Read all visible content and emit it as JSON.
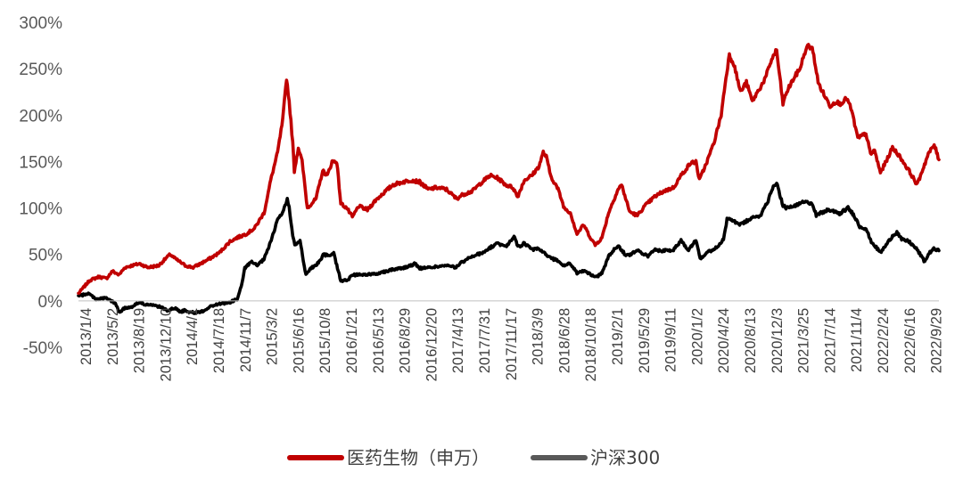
{
  "chart_data": {
    "type": "line",
    "y_tick_labels": [
      "300%",
      "250%",
      "200%",
      "150%",
      "100%",
      "50%",
      "0%",
      "-50%"
    ],
    "y_tick_values": [
      300,
      250,
      200,
      150,
      100,
      50,
      0,
      -50
    ],
    "ylim": [
      -50,
      300
    ],
    "y_unit": "%",
    "x_tick_labels": [
      "2013/1/4",
      "2013/5/2",
      "2013/8/19",
      "2013/12/10",
      "2014/4/1",
      "2014/7/18",
      "2014/11/7",
      "2015/3/2",
      "2015/6/16",
      "2015/10/8",
      "2016/1/21",
      "2016/5/13",
      "2016/8/29",
      "2016/12/20",
      "2017/4/13",
      "2017/7/31",
      "2017/11/17",
      "2018/3/9",
      "2018/6/28",
      "2018/10/18",
      "2019/2/1",
      "2019/5/29",
      "2019/9/11",
      "2020/1/2",
      "2020/4/24",
      "2020/8/13",
      "2020/12/3",
      "2021/3/25",
      "2021/7/14",
      "2021/11/4",
      "2022/2/24",
      "2022/6/16",
      "2022/9/29"
    ],
    "grid": false,
    "legend_position": "bottom",
    "series": [
      {
        "name": "医药生物（申万）",
        "color": "#c00000",
        "points": [
          [
            "2013/1/4",
            8
          ],
          [
            "2013/2/20",
            22
          ],
          [
            "2013/4/1",
            26
          ],
          [
            "2013/5/2",
            24
          ],
          [
            "2013/5/28",
            32
          ],
          [
            "2013/6/25",
            28
          ],
          [
            "2013/7/20",
            36
          ],
          [
            "2013/8/19",
            38
          ],
          [
            "2013/9/20",
            40
          ],
          [
            "2013/10/25",
            36
          ],
          [
            "2013/12/10",
            38
          ],
          [
            "2014/1/10",
            46
          ],
          [
            "2014/1/28",
            50
          ],
          [
            "2014/2/20",
            45
          ],
          [
            "2014/3/10",
            42
          ],
          [
            "2014/4/1",
            38
          ],
          [
            "2014/5/5",
            36
          ],
          [
            "2014/6/5",
            40
          ],
          [
            "2014/7/18",
            46
          ],
          [
            "2014/8/25",
            52
          ],
          [
            "2014/10/8",
            64
          ],
          [
            "2014/11/7",
            68
          ],
          [
            "2014/12/15",
            72
          ],
          [
            "2015/1/20",
            78
          ],
          [
            "2015/3/2",
            95
          ],
          [
            "2015/3/30",
            130
          ],
          [
            "2015/4/28",
            160
          ],
          [
            "2015/5/20",
            195
          ],
          [
            "2015/6/5",
            240
          ],
          [
            "2015/6/16",
            215
          ],
          [
            "2015/7/1",
            170
          ],
          [
            "2015/7/8",
            140
          ],
          [
            "2015/7/25",
            165
          ],
          [
            "2015/8/10",
            150
          ],
          [
            "2015/9/1",
            100
          ],
          [
            "2015/10/8",
            110
          ],
          [
            "2015/11/5",
            140
          ],
          [
            "2015/11/25",
            135
          ],
          [
            "2015/12/15",
            150
          ],
          [
            "2016/1/4",
            150
          ],
          [
            "2016/1/21",
            105
          ],
          [
            "2016/2/15",
            100
          ],
          [
            "2016/3/10",
            90
          ],
          [
            "2016/4/5",
            102
          ],
          [
            "2016/5/13",
            98
          ],
          [
            "2016/6/15",
            108
          ],
          [
            "2016/7/15",
            115
          ],
          [
            "2016/8/29",
            125
          ],
          [
            "2016/10/10",
            128
          ],
          [
            "2016/11/15",
            130
          ],
          [
            "2016/12/20",
            128
          ],
          [
            "2017/1/25",
            120
          ],
          [
            "2017/3/1",
            122
          ],
          [
            "2017/4/13",
            120
          ],
          [
            "2017/5/25",
            110
          ],
          [
            "2017/6/25",
            115
          ],
          [
            "2017/7/31",
            118
          ],
          [
            "2017/9/10",
            128
          ],
          [
            "2017/10/15",
            135
          ],
          [
            "2017/11/17",
            132
          ],
          [
            "2017/12/20",
            125
          ],
          [
            "2018/1/20",
            122
          ],
          [
            "2018/2/8",
            112
          ],
          [
            "2018/3/9",
            130
          ],
          [
            "2018/4/10",
            135
          ],
          [
            "2018/5/10",
            145
          ],
          [
            "2018/5/28",
            160
          ],
          [
            "2018/6/10",
            155
          ],
          [
            "2018/6/28",
            135
          ],
          [
            "2018/7/30",
            120
          ],
          [
            "2018/8/25",
            100
          ],
          [
            "2018/9/20",
            95
          ],
          [
            "2018/10/18",
            72
          ],
          [
            "2018/11/15",
            82
          ],
          [
            "2018/12/10",
            70
          ],
          [
            "2019/1/3",
            60
          ],
          [
            "2019/2/1",
            68
          ],
          [
            "2019/3/1",
            95
          ],
          [
            "2019/4/10",
            120
          ],
          [
            "2019/4/25",
            125
          ],
          [
            "2019/5/29",
            96
          ],
          [
            "2019/7/1",
            92
          ],
          [
            "2019/8/1",
            102
          ],
          [
            "2019/9/11",
            112
          ],
          [
            "2019/10/20",
            118
          ],
          [
            "2019/12/1",
            122
          ],
          [
            "2020/1/2",
            135
          ],
          [
            "2020/2/10",
            148
          ],
          [
            "2020/3/5",
            150
          ],
          [
            "2020/3/20",
            130
          ],
          [
            "2020/4/24",
            152
          ],
          [
            "2020/5/20",
            170
          ],
          [
            "2020/6/20",
            200
          ],
          [
            "2020/7/10",
            240
          ],
          [
            "2020/7/25",
            265
          ],
          [
            "2020/8/13",
            255
          ],
          [
            "2020/9/10",
            225
          ],
          [
            "2020/10/5",
            235
          ],
          [
            "2020/10/30",
            215
          ],
          [
            "2020/12/3",
            230
          ],
          [
            "2020/12/25",
            240
          ],
          [
            "2021/1/20",
            260
          ],
          [
            "2021/2/10",
            270
          ],
          [
            "2021/3/9",
            212
          ],
          [
            "2021/3/25",
            225
          ],
          [
            "2021/4/20",
            238
          ],
          [
            "2021/5/20",
            250
          ],
          [
            "2021/6/10",
            268
          ],
          [
            "2021/6/25",
            275
          ],
          [
            "2021/7/14",
            270
          ],
          [
            "2021/8/5",
            235
          ],
          [
            "2021/8/30",
            222
          ],
          [
            "2021/9/25",
            210
          ],
          [
            "2021/10/20",
            215
          ],
          [
            "2021/11/4",
            212
          ],
          [
            "2021/12/5",
            218
          ],
          [
            "2021/12/25",
            205
          ],
          [
            "2022/1/20",
            175
          ],
          [
            "2022/2/24",
            180
          ],
          [
            "2022/3/15",
            158
          ],
          [
            "2022/4/1",
            162
          ],
          [
            "2022/4/26",
            138
          ],
          [
            "2022/5/20",
            150
          ],
          [
            "2022/6/16",
            165
          ],
          [
            "2022/7/10",
            158
          ],
          [
            "2022/8/5",
            148
          ],
          [
            "2022/8/30",
            138
          ],
          [
            "2022/9/29",
            125
          ],
          [
            "2022/10/20",
            140
          ],
          [
            "2022/11/15",
            158
          ],
          [
            "2022/12/10",
            168
          ],
          [
            "2022/12/30",
            152
          ]
        ]
      },
      {
        "name": "沪深300",
        "color": "#000000",
        "points": [
          [
            "2013/1/4",
            5
          ],
          [
            "2013/2/15",
            8
          ],
          [
            "2013/3/20",
            2
          ],
          [
            "2013/5/2",
            3
          ],
          [
            "2013/6/10",
            -3
          ],
          [
            "2013/6/25",
            -12
          ],
          [
            "2013/7/20",
            -8
          ],
          [
            "2013/8/19",
            -6
          ],
          [
            "2013/9/15",
            -2
          ],
          [
            "2013/10/20",
            -4
          ],
          [
            "2013/12/10",
            -6
          ],
          [
            "2014/1/15",
            -10
          ],
          [
            "2014/2/20",
            -8
          ],
          [
            "2014/3/15",
            -12
          ],
          [
            "2014/4/1",
            -10
          ],
          [
            "2014/5/10",
            -13
          ],
          [
            "2014/6/15",
            -11
          ],
          [
            "2014/7/18",
            -6
          ],
          [
            "2014/8/25",
            -3
          ],
          [
            "2014/10/5",
            -2
          ],
          [
            "2014/11/7",
            2
          ],
          [
            "2014/11/25",
            15
          ],
          [
            "2014/12/10",
            35
          ],
          [
            "2015/1/5",
            42
          ],
          [
            "2015/2/1",
            38
          ],
          [
            "2015/3/2",
            45
          ],
          [
            "2015/4/1",
            65
          ],
          [
            "2015/4/28",
            88
          ],
          [
            "2015/5/20",
            95
          ],
          [
            "2015/6/8",
            110
          ],
          [
            "2015/6/16",
            100
          ],
          [
            "2015/7/1",
            70
          ],
          [
            "2015/7/10",
            60
          ],
          [
            "2015/8/1",
            65
          ],
          [
            "2015/8/26",
            28
          ],
          [
            "2015/9/15",
            35
          ],
          [
            "2015/10/8",
            38
          ],
          [
            "2015/11/10",
            50
          ],
          [
            "2015/12/1",
            48
          ],
          [
            "2015/12/22",
            52
          ],
          [
            "2016/1/7",
            35
          ],
          [
            "2016/1/21",
            22
          ],
          [
            "2016/2/15",
            22
          ],
          [
            "2016/3/15",
            28
          ],
          [
            "2016/5/13",
            28
          ],
          [
            "2016/7/1",
            30
          ],
          [
            "2016/8/29",
            34
          ],
          [
            "2016/10/20",
            36
          ],
          [
            "2016/12/1",
            40
          ],
          [
            "2016/12/20",
            35
          ],
          [
            "2017/2/1",
            36
          ],
          [
            "2017/4/13",
            38
          ],
          [
            "2017/5/20",
            36
          ],
          [
            "2017/6/20",
            42
          ],
          [
            "2017/7/31",
            48
          ],
          [
            "2017/9/15",
            52
          ],
          [
            "2017/10/20",
            58
          ],
          [
            "2017/11/17",
            62
          ],
          [
            "2017/12/20",
            58
          ],
          [
            "2018/1/24",
            70
          ],
          [
            "2018/2/9",
            58
          ],
          [
            "2018/3/9",
            62
          ],
          [
            "2018/4/10",
            55
          ],
          [
            "2018/5/10",
            56
          ],
          [
            "2018/6/28",
            46
          ],
          [
            "2018/7/25",
            44
          ],
          [
            "2018/8/20",
            38
          ],
          [
            "2018/9/20",
            40
          ],
          [
            "2018/10/18",
            30
          ],
          [
            "2018/11/20",
            32
          ],
          [
            "2018/12/20",
            28
          ],
          [
            "2019/1/3",
            25
          ],
          [
            "2019/2/1",
            30
          ],
          [
            "2019/3/1",
            48
          ],
          [
            "2019/4/10",
            60
          ],
          [
            "2019/5/10",
            50
          ],
          [
            "2019/5/29",
            50
          ],
          [
            "2019/7/1",
            54
          ],
          [
            "2019/8/15",
            48
          ],
          [
            "2019/9/11",
            55
          ],
          [
            "2019/10/20",
            54
          ],
          [
            "2019/12/1",
            55
          ],
          [
            "2020/1/2",
            65
          ],
          [
            "2020/2/3",
            55
          ],
          [
            "2020/3/5",
            66
          ],
          [
            "2020/3/23",
            46
          ],
          [
            "2020/4/24",
            52
          ],
          [
            "2020/6/1",
            58
          ],
          [
            "2020/6/30",
            66
          ],
          [
            "2020/7/15",
            88
          ],
          [
            "2020/8/13",
            86
          ],
          [
            "2020/9/10",
            82
          ],
          [
            "2020/10/20",
            88
          ],
          [
            "2020/12/3",
            92
          ],
          [
            "2021/1/5",
            108
          ],
          [
            "2021/1/20",
            120
          ],
          [
            "2021/2/10",
            128
          ],
          [
            "2021/3/9",
            102
          ],
          [
            "2021/3/25",
            100
          ],
          [
            "2021/5/1",
            102
          ],
          [
            "2021/6/10",
            108
          ],
          [
            "2021/7/14",
            104
          ],
          [
            "2021/7/28",
            92
          ],
          [
            "2021/8/20",
            95
          ],
          [
            "2021/9/15",
            98
          ],
          [
            "2021/11/4",
            94
          ],
          [
            "2021/12/10",
            100
          ],
          [
            "2022/1/5",
            92
          ],
          [
            "2022/1/28",
            80
          ],
          [
            "2022/2/24",
            78
          ],
          [
            "2022/3/15",
            65
          ],
          [
            "2022/4/26",
            52
          ],
          [
            "2022/5/20",
            60
          ],
          [
            "2022/6/16",
            70
          ],
          [
            "2022/7/5",
            74
          ],
          [
            "2022/7/25",
            66
          ],
          [
            "2022/8/25",
            64
          ],
          [
            "2022/9/29",
            55
          ],
          [
            "2022/10/31",
            42
          ],
          [
            "2022/11/15",
            50
          ],
          [
            "2022/12/5",
            56
          ],
          [
            "2022/12/30",
            54
          ]
        ]
      }
    ]
  }
}
